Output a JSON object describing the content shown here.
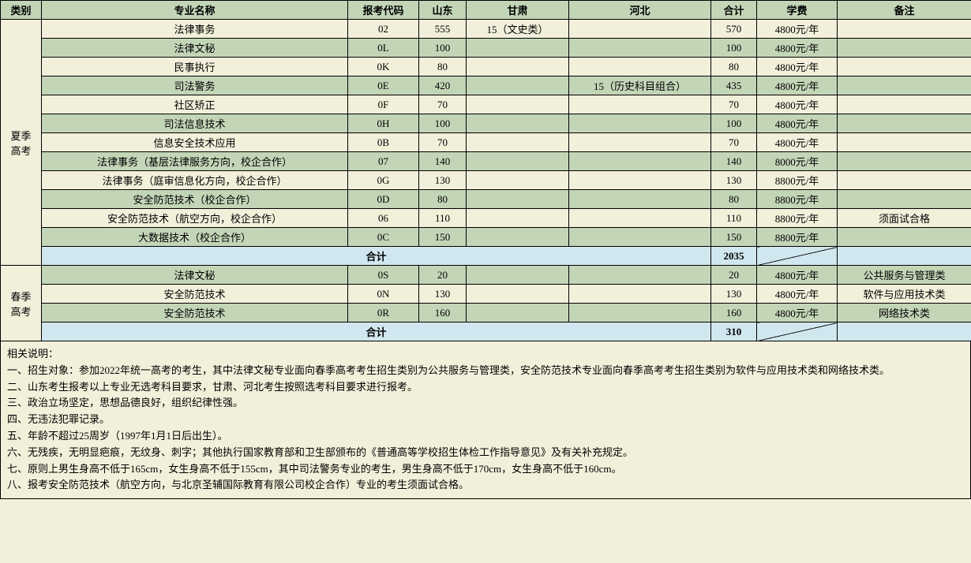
{
  "colors": {
    "header_bg": "#c3d5b7",
    "row_green": "#c3d5b7",
    "row_yellow": "#f2f0da",
    "row_blue": "#d1e7f0",
    "border": "#000000"
  },
  "headers": {
    "category": "类别",
    "major": "专业名称",
    "code": "报考代码",
    "shandong": "山东",
    "gansu": "甘肃",
    "hebei": "河北",
    "total": "合计",
    "fee": "学费",
    "note": "备注"
  },
  "summer": {
    "label": "夏季高考",
    "rows": [
      {
        "major": "法律事务",
        "code": "02",
        "sd": "555",
        "gs": "15（文史类）",
        "hb": "",
        "total": "570",
        "fee": "4800元/年",
        "note": ""
      },
      {
        "major": "法律文秘",
        "code": "0L",
        "sd": "100",
        "gs": "",
        "hb": "",
        "total": "100",
        "fee": "4800元/年",
        "note": ""
      },
      {
        "major": "民事执行",
        "code": "0K",
        "sd": "80",
        "gs": "",
        "hb": "",
        "total": "80",
        "fee": "4800元/年",
        "note": ""
      },
      {
        "major": "司法警务",
        "code": "0E",
        "sd": "420",
        "gs": "",
        "hb": "15（历史科目组合）",
        "total": "435",
        "fee": "4800元/年",
        "note": ""
      },
      {
        "major": "社区矫正",
        "code": "0F",
        "sd": "70",
        "gs": "",
        "hb": "",
        "total": "70",
        "fee": "4800元/年",
        "note": ""
      },
      {
        "major": "司法信息技术",
        "code": "0H",
        "sd": "100",
        "gs": "",
        "hb": "",
        "total": "100",
        "fee": "4800元/年",
        "note": ""
      },
      {
        "major": "信息安全技术应用",
        "code": "0B",
        "sd": "70",
        "gs": "",
        "hb": "",
        "total": "70",
        "fee": "4800元/年",
        "note": ""
      },
      {
        "major": "法律事务（基层法律服务方向，校企合作）",
        "code": "07",
        "sd": "140",
        "gs": "",
        "hb": "",
        "total": "140",
        "fee": "8000元/年",
        "note": ""
      },
      {
        "major": "法律事务（庭审信息化方向，校企合作）",
        "code": "0G",
        "sd": "130",
        "gs": "",
        "hb": "",
        "total": "130",
        "fee": "8800元/年",
        "note": ""
      },
      {
        "major": "安全防范技术（校企合作）",
        "code": "0D",
        "sd": "80",
        "gs": "",
        "hb": "",
        "total": "80",
        "fee": "8800元/年",
        "note": ""
      },
      {
        "major": "安全防范技术（航空方向，校企合作）",
        "code": "06",
        "sd": "110",
        "gs": "",
        "hb": "",
        "total": "110",
        "fee": "8800元/年",
        "note": "须面试合格"
      },
      {
        "major": "大数据技术（校企合作）",
        "code": "0C",
        "sd": "150",
        "gs": "",
        "hb": "",
        "total": "150",
        "fee": "8800元/年",
        "note": ""
      }
    ],
    "subtotal_label": "合计",
    "subtotal_value": "2035"
  },
  "spring": {
    "label": "春季高考",
    "rows": [
      {
        "major": "法律文秘",
        "code": "0S",
        "sd": "20",
        "gs": "",
        "hb": "",
        "total": "20",
        "fee": "4800元/年",
        "note": "公共服务与管理类"
      },
      {
        "major": "安全防范技术",
        "code": "0N",
        "sd": "130",
        "gs": "",
        "hb": "",
        "total": "130",
        "fee": "4800元/年",
        "note": "软件与应用技术类"
      },
      {
        "major": "安全防范技术",
        "code": "0R",
        "sd": "160",
        "gs": "",
        "hb": "",
        "total": "160",
        "fee": "4800元/年",
        "note": "网络技术类"
      }
    ],
    "subtotal_label": "合计",
    "subtotal_value": "310"
  },
  "notes": {
    "title": "相关说明：",
    "items": [
      "一、招生对象：参加2022年统一高考的考生，其中法律文秘专业面向春季高考考生招生类别为公共服务与管理类，安全防范技术专业面向春季高考考生招生类别为软件与应用技术类和网络技术类。",
      "二、山东考生报考以上专业无选考科目要求，甘肃、河北考生按照选考科目要求进行报考。",
      "三、政治立场坚定，思想品德良好，组织纪律性强。",
      "四、无违法犯罪记录。",
      "五、年龄不超过25周岁（1997年1月1日后出生）。",
      "六、无残疾，无明显疤痕，无纹身、刺字；其他执行国家教育部和卫生部颁布的《普通高等学校招生体检工作指导意见》及有关补充规定。",
      "七、原则上男生身高不低于165cm，女生身高不低于155cm，其中司法警务专业的考生，男生身高不低于170cm，女生身高不低于160cm。",
      "八、报考安全防范技术（航空方向，与北京圣辅国际教育有限公司校企合作）专业的考生须面试合格。"
    ]
  }
}
